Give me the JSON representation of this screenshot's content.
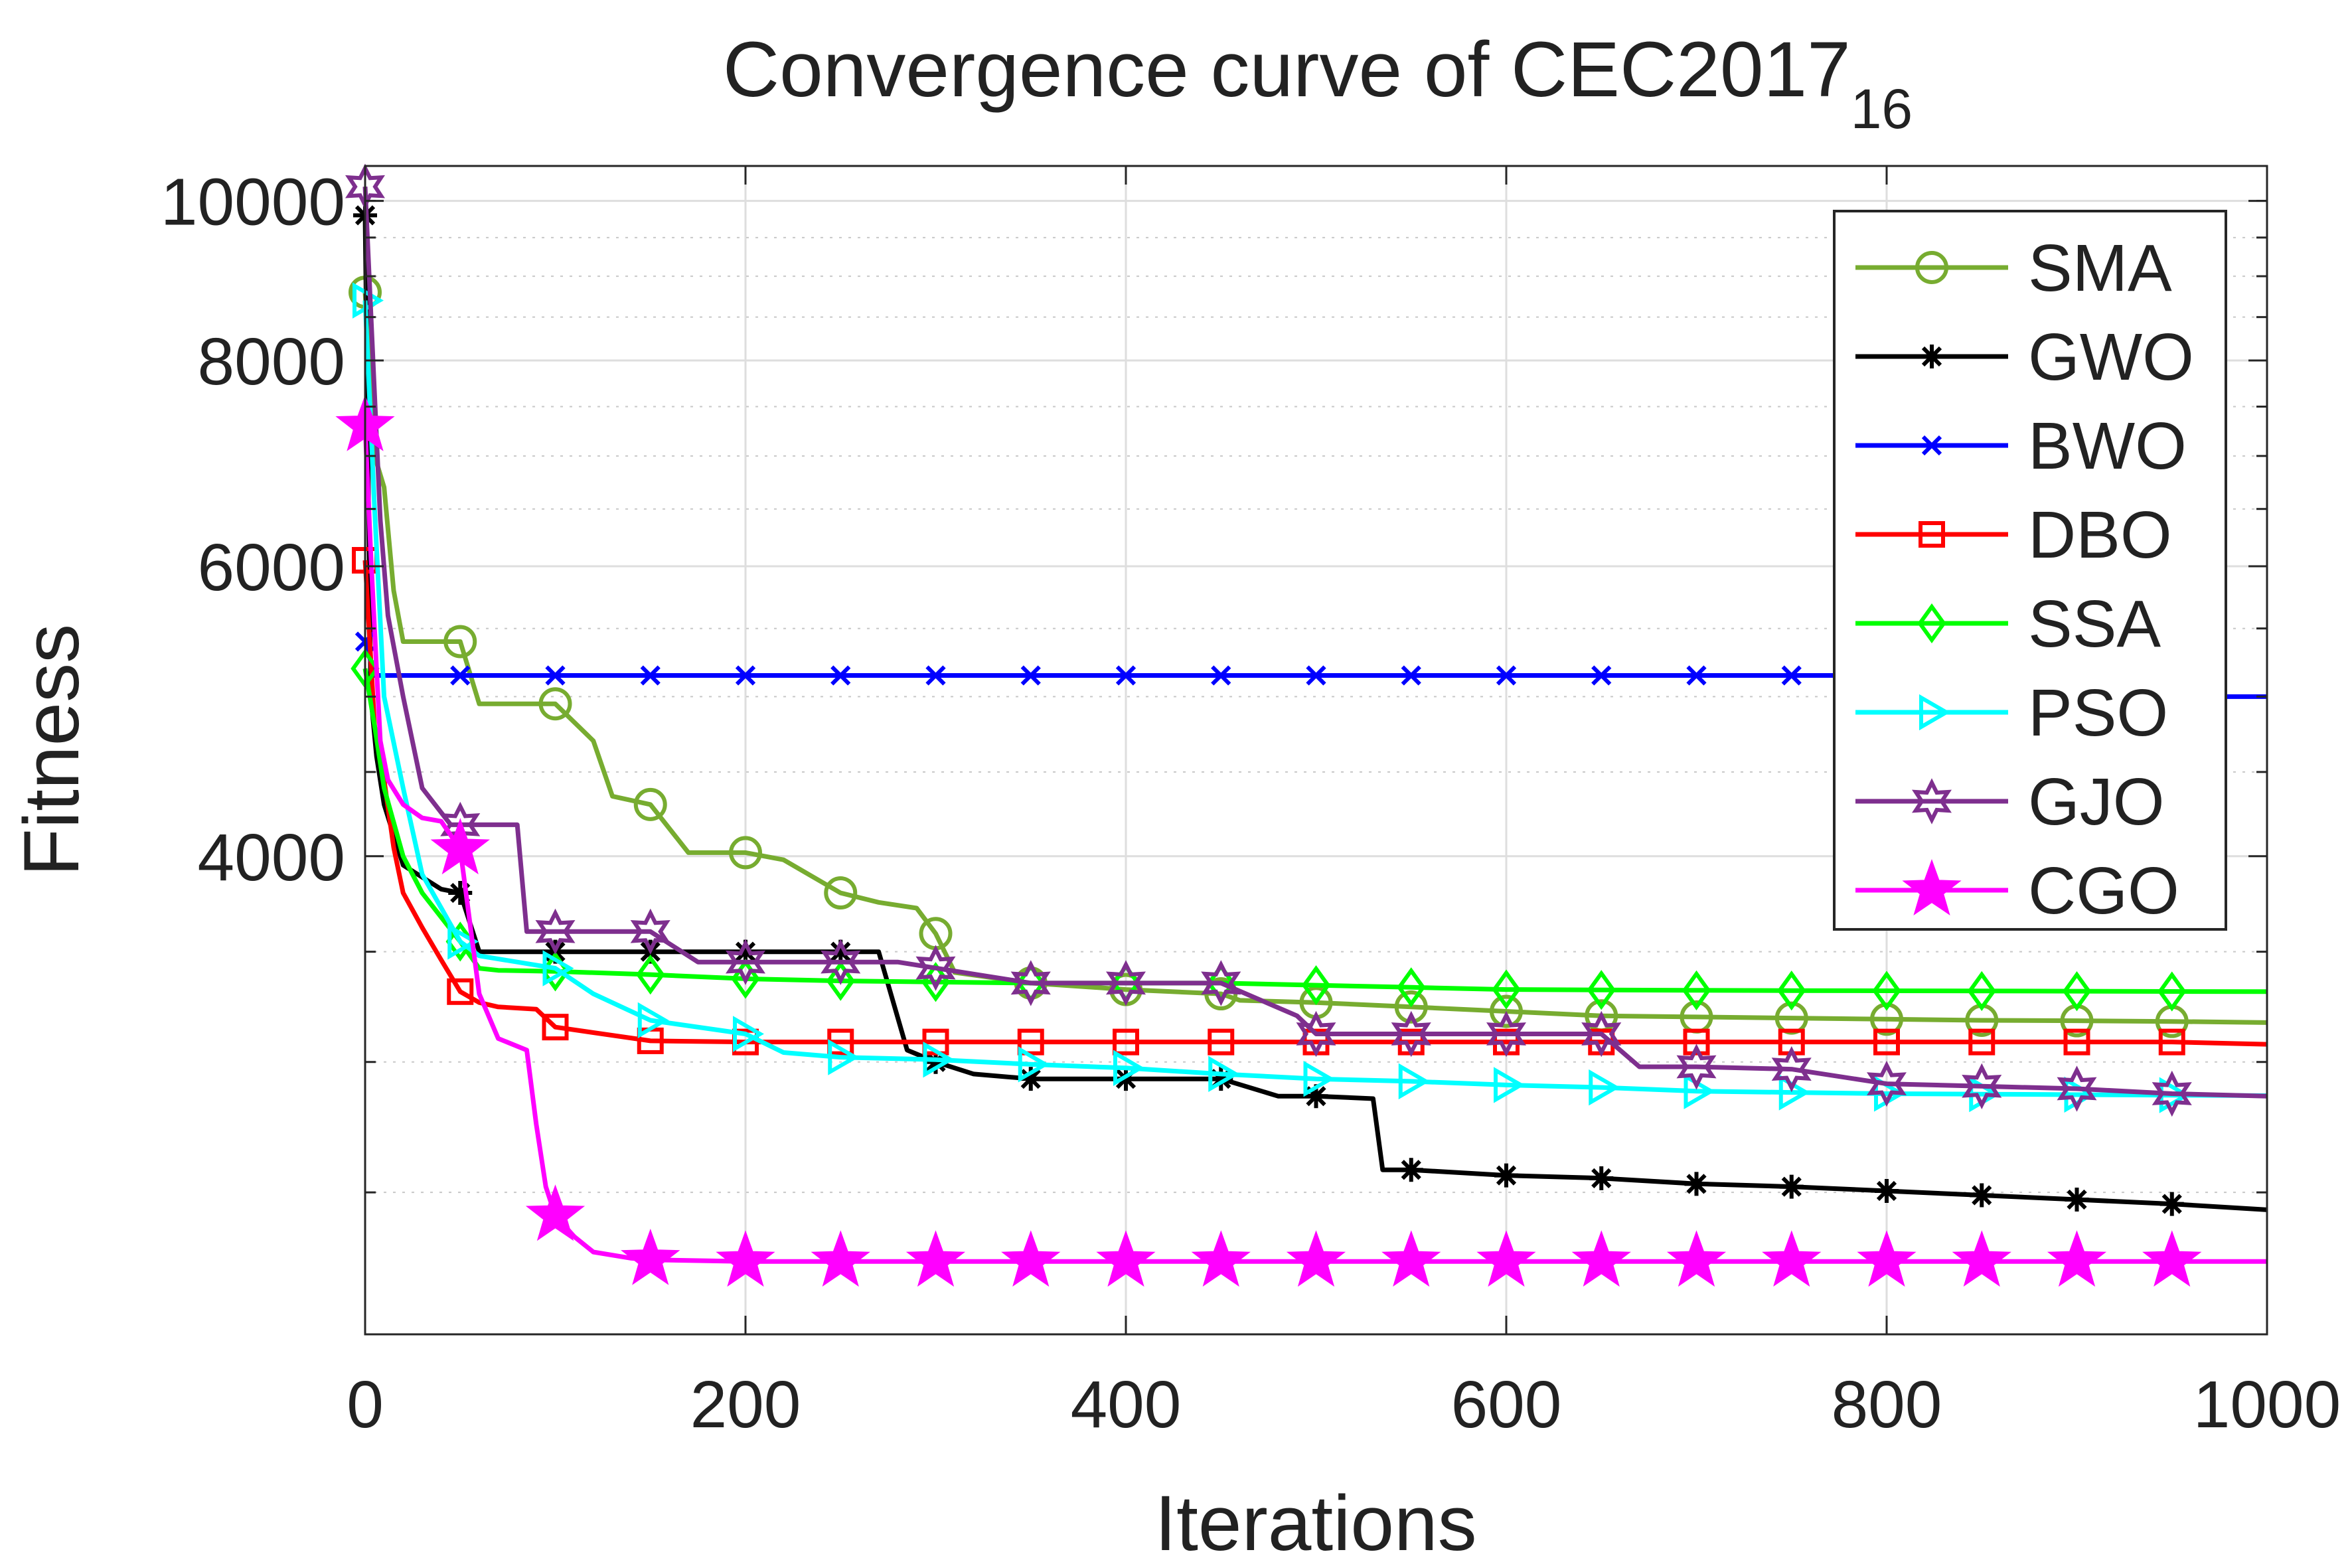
{
  "chart_data": {
    "type": "line",
    "title": "Convergence curve of CEC2017",
    "title_subscript": "16",
    "xlabel": "Iterations",
    "ylabel": "Fitness",
    "xlim": [
      0,
      1000
    ],
    "ylim": [
      2050,
      10500
    ],
    "yscale": "log",
    "grid": true,
    "legend_position": "top-right",
    "x_ticks": [
      0,
      200,
      400,
      600,
      800,
      1000
    ],
    "x_tick_labels": [
      "0",
      "200",
      "400",
      "600",
      "800",
      "1000"
    ],
    "y_ticks": [
      4000,
      6000,
      8000,
      10000
    ],
    "y_tick_labels": [
      "4000",
      "6000",
      "8000",
      "10000"
    ],
    "y_minor_ticks": [
      2500,
      3000,
      3500,
      4500,
      5000,
      5500,
      6500,
      7000,
      7500,
      8500,
      9000,
      9500,
      10000
    ],
    "marker_x": [
      0,
      50,
      100,
      150,
      200,
      250,
      300,
      350,
      400,
      450,
      500,
      550,
      600,
      650,
      700,
      750,
      800,
      850,
      900,
      950
    ],
    "series": [
      {
        "name": "SMA",
        "color": "#77AC30",
        "marker": "circle",
        "x": [
          0,
          5,
          10,
          15,
          20,
          50,
          60,
          100,
          120,
          130,
          150,
          170,
          200,
          220,
          250,
          270,
          290,
          300,
          310,
          350,
          400,
          450,
          460,
          500,
          550,
          600,
          650,
          700,
          750,
          800,
          850,
          900,
          950,
          1000
        ],
        "y": [
          8800,
          7000,
          6700,
          5800,
          5400,
          5400,
          4950,
          4950,
          4700,
          4350,
          4300,
          4020,
          4020,
          3980,
          3800,
          3750,
          3720,
          3590,
          3400,
          3350,
          3320,
          3300,
          3270,
          3260,
          3240,
          3220,
          3200,
          3195,
          3190,
          3185,
          3180,
          3178,
          3175,
          3170
        ]
      },
      {
        "name": "GWO",
        "color": "#000000",
        "marker": "asterisk",
        "x": [
          0,
          3,
          6,
          10,
          20,
          40,
          50,
          60,
          100,
          150,
          200,
          250,
          270,
          285,
          300,
          320,
          350,
          400,
          450,
          480,
          500,
          530,
          535,
          550,
          600,
          650,
          700,
          750,
          800,
          850,
          900,
          950,
          1000
        ],
        "y": [
          9800,
          5000,
          4600,
          4300,
          3950,
          3820,
          3800,
          3500,
          3500,
          3500,
          3500,
          3500,
          3500,
          3050,
          3000,
          2950,
          2930,
          2930,
          2930,
          2860,
          2860,
          2850,
          2580,
          2580,
          2560,
          2550,
          2530,
          2520,
          2505,
          2490,
          2475,
          2460,
          2440
        ]
      },
      {
        "name": "BWO",
        "color": "#0000FF",
        "marker": "x",
        "x": [
          0,
          5,
          50,
          100,
          150,
          200,
          250,
          300,
          350,
          400,
          450,
          500,
          550,
          600,
          650,
          700,
          750,
          800,
          850,
          900,
          950,
          970,
          1000
        ],
        "y": [
          5400,
          5150,
          5150,
          5150,
          5150,
          5150,
          5150,
          5150,
          5150,
          5150,
          5150,
          5150,
          5150,
          5150,
          5150,
          5150,
          5150,
          5150,
          5150,
          5150,
          5150,
          5000,
          5000
        ]
      },
      {
        "name": "DBO",
        "color": "#FF0000",
        "marker": "square",
        "x": [
          0,
          5,
          10,
          15,
          20,
          30,
          40,
          50,
          60,
          70,
          90,
          100,
          150,
          200,
          250,
          300,
          350,
          400,
          450,
          500,
          550,
          600,
          650,
          700,
          750,
          800,
          850,
          900,
          950,
          1000
        ],
        "y": [
          6050,
          4800,
          4450,
          4050,
          3800,
          3620,
          3460,
          3310,
          3260,
          3240,
          3230,
          3150,
          3090,
          3085,
          3085,
          3085,
          3085,
          3085,
          3085,
          3085,
          3085,
          3085,
          3085,
          3085,
          3085,
          3085,
          3085,
          3085,
          3085,
          3075
        ]
      },
      {
        "name": "SSA",
        "color": "#00FF00",
        "marker": "diamond",
        "x": [
          0,
          5,
          10,
          20,
          30,
          50,
          60,
          70,
          100,
          150,
          200,
          250,
          300,
          350,
          400,
          450,
          500,
          550,
          600,
          650,
          700,
          750,
          800,
          850,
          900,
          950,
          1000
        ],
        "y": [
          5200,
          4800,
          4400,
          4000,
          3800,
          3550,
          3420,
          3410,
          3405,
          3390,
          3370,
          3360,
          3355,
          3350,
          3350,
          3350,
          3340,
          3330,
          3320,
          3318,
          3316,
          3315,
          3314,
          3313,
          3312,
          3311,
          3310
        ]
      },
      {
        "name": "PSO",
        "color": "#00FFFF",
        "marker": "triangle-right",
        "x": [
          0,
          5,
          10,
          20,
          30,
          50,
          60,
          100,
          120,
          150,
          200,
          220,
          250,
          300,
          350,
          400,
          450,
          500,
          550,
          600,
          650,
          700,
          750,
          800,
          850,
          900,
          950,
          1000
        ],
        "y": [
          8700,
          6500,
          5000,
          4400,
          3900,
          3550,
          3480,
          3420,
          3300,
          3180,
          3120,
          3040,
          3020,
          3010,
          2990,
          2975,
          2950,
          2930,
          2920,
          2905,
          2895,
          2880,
          2875,
          2870,
          2868,
          2866,
          2864,
          2862
        ]
      },
      {
        "name": "GJO",
        "color": "#7E2F8E",
        "marker": "hexagram",
        "x": [
          0,
          8,
          12,
          20,
          30,
          45,
          80,
          85,
          100,
          150,
          175,
          200,
          250,
          280,
          350,
          400,
          450,
          490,
          500,
          550,
          600,
          650,
          670,
          700,
          750,
          800,
          850,
          900,
          950,
          1000
        ],
        "y": [
          10200,
          6400,
          5600,
          5000,
          4400,
          4180,
          4180,
          3600,
          3600,
          3600,
          3450,
          3450,
          3450,
          3450,
          3350,
          3350,
          3350,
          3200,
          3120,
          3120,
          3120,
          3120,
          2980,
          2980,
          2970,
          2910,
          2900,
          2890,
          2870,
          2860
        ]
      },
      {
        "name": "CGO",
        "color": "#FF00FF",
        "marker": "pentagram",
        "x": [
          0,
          3,
          6,
          8,
          12,
          20,
          30,
          40,
          50,
          60,
          70,
          85,
          90,
          95,
          100,
          110,
          120,
          140,
          150,
          200,
          250,
          300,
          350,
          400,
          450,
          500,
          550,
          600,
          650,
          700,
          750,
          800,
          850,
          900,
          950,
          1000
        ],
        "y": [
          7300,
          6100,
          5200,
          4700,
          4450,
          4300,
          4220,
          4200,
          4040,
          3300,
          3100,
          3050,
          2750,
          2520,
          2420,
          2350,
          2300,
          2280,
          2275,
          2270,
          2270,
          2270,
          2270,
          2270,
          2270,
          2270,
          2270,
          2270,
          2270,
          2270,
          2270,
          2270,
          2270,
          2270,
          2270,
          2270
        ]
      }
    ]
  }
}
